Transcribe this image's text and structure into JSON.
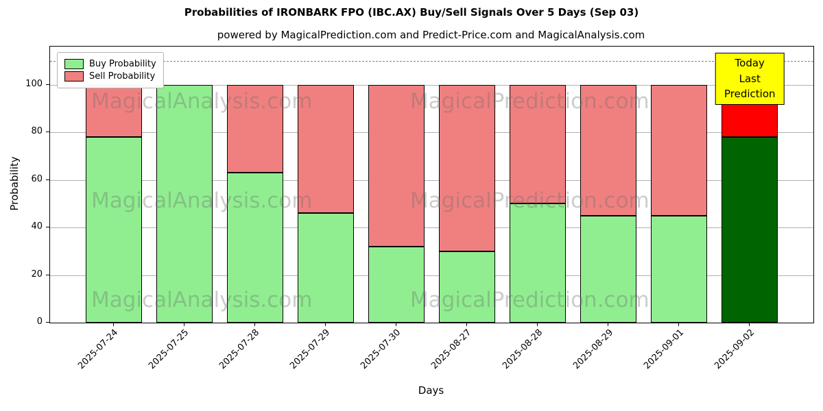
{
  "title": "Probabilities of IRONBARK FPO (IBC.AX) Buy/Sell Signals Over 5 Days (Sep 03)",
  "subtitle": "powered by MagicalPrediction.com and Predict-Price.com and MagicalAnalysis.com",
  "chart_data": {
    "type": "bar",
    "stacked": true,
    "categories": [
      "2025-07-24",
      "2025-07-25",
      "2025-07-28",
      "2025-07-29",
      "2025-07-30",
      "2025-08-27",
      "2025-08-28",
      "2025-08-29",
      "2025-09-01",
      "2025-09-02"
    ],
    "series": [
      {
        "name": "Buy Probability",
        "color": "#90EE90",
        "values": [
          78,
          100,
          63,
          46,
          32,
          30,
          50,
          45,
          45,
          78
        ]
      },
      {
        "name": "Sell Probability",
        "color": "#F08080",
        "values": [
          22,
          0,
          37,
          54,
          68,
          70,
          50,
          55,
          55,
          22
        ]
      }
    ],
    "last_bar_colors": {
      "buy": "#006400",
      "sell": "#FF0000"
    },
    "title": "Probabilities of IRONBARK FPO (IBC.AX) Buy/Sell Signals Over 5 Days (Sep 03)",
    "xlabel": "Days",
    "ylabel": "Probability",
    "ylim": [
      0,
      116
    ],
    "yticks": [
      0,
      20,
      40,
      60,
      80,
      100
    ],
    "dashed_line_y": 110,
    "grid": "horizontal",
    "legend_position": "upper left"
  },
  "annotation": {
    "line1": "Today",
    "line2": "Last Prediction",
    "bg_color": "#FFFF00"
  },
  "watermarks": [
    {
      "text": "MagicalAnalysis.com"
    },
    {
      "text": "MagicalPrediction.com"
    }
  ]
}
